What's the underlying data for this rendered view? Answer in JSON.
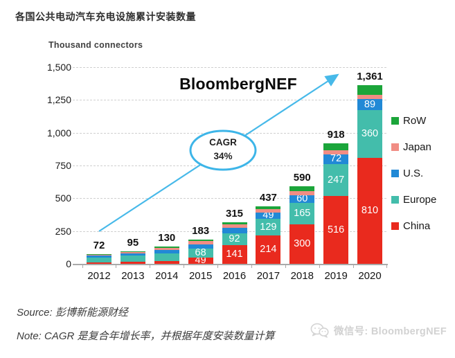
{
  "header": {
    "title": "各国公共电动汽车充电设施累计安装数量",
    "unit_label": "Thousand connectors"
  },
  "watermark": "BloombergNEF",
  "annotation": {
    "line1": "CAGR",
    "line2": "34%"
  },
  "footer": {
    "source": "Source: 彭博新能源财经",
    "note": "Note: CAGR 是复合年增长率，并根据年度安装数量计算",
    "wechat": "微信号: BloombergNEF"
  },
  "chart_data": {
    "type": "bar",
    "stacked": true,
    "title": "各国公共电动汽车充电设施累计安装数量",
    "ylabel": "Thousand connectors",
    "ylim": [
      0,
      1500
    ],
    "ytick_values": [
      0,
      250,
      500,
      750,
      1000,
      1250,
      1500
    ],
    "ytick_labels": [
      "0",
      "250",
      "500",
      "750",
      "1,000",
      "1,250",
      "1,500"
    ],
    "grid": "horizontal-dashed",
    "categories": [
      "2012",
      "2013",
      "2014",
      "2015",
      "2016",
      "2017",
      "2018",
      "2019",
      "2020"
    ],
    "series": [
      {
        "name": "China",
        "color": "#e92a1e",
        "values": [
          13,
          16,
          22,
          49,
          141,
          214,
          300,
          516,
          810
        ],
        "labels": [
          null,
          null,
          null,
          "49",
          "141",
          "214",
          "300",
          "516",
          "810"
        ]
      },
      {
        "name": "Europe",
        "color": "#43bdab",
        "values": [
          35,
          45,
          58,
          68,
          92,
          129,
          165,
          247,
          360
        ],
        "labels": [
          null,
          null,
          null,
          "68",
          "92",
          "129",
          "165",
          "247",
          "360"
        ]
      },
      {
        "name": "U.S.",
        "color": "#2189d6",
        "values": [
          14,
          18,
          25,
          30,
          40,
          49,
          60,
          72,
          89
        ],
        "labels": [
          null,
          null,
          null,
          null,
          null,
          "49",
          "60",
          "72",
          "89"
        ]
      },
      {
        "name": "Japan",
        "color": "#f18d84",
        "values": [
          8,
          13,
          18,
          26,
          26,
          27,
          29,
          30,
          28
        ],
        "labels": [
          null,
          null,
          null,
          null,
          null,
          null,
          null,
          null,
          null
        ]
      },
      {
        "name": "RoW",
        "color": "#1ba53a",
        "values": [
          2,
          3,
          7,
          10,
          16,
          18,
          36,
          53,
          74
        ],
        "labels": [
          null,
          null,
          null,
          null,
          null,
          null,
          null,
          null,
          null
        ]
      }
    ],
    "totals": [
      72,
      95,
      130,
      183,
      315,
      437,
      590,
      918,
      1361
    ],
    "total_labels": [
      "72",
      "95",
      "130",
      "183",
      "315",
      "437",
      "590",
      "918",
      "1,361"
    ],
    "legend": [
      {
        "label": "RoW",
        "color": "#1ba53a"
      },
      {
        "label": "Japan",
        "color": "#f18d84"
      },
      {
        "label": "U.S.",
        "color": "#2189d6"
      },
      {
        "label": "Europe",
        "color": "#43bdab"
      },
      {
        "label": "China",
        "color": "#e92a1e"
      }
    ],
    "legend_position": "right",
    "annotation": {
      "text": "CAGR 34%",
      "arrow_color": "#47b9e9"
    }
  }
}
